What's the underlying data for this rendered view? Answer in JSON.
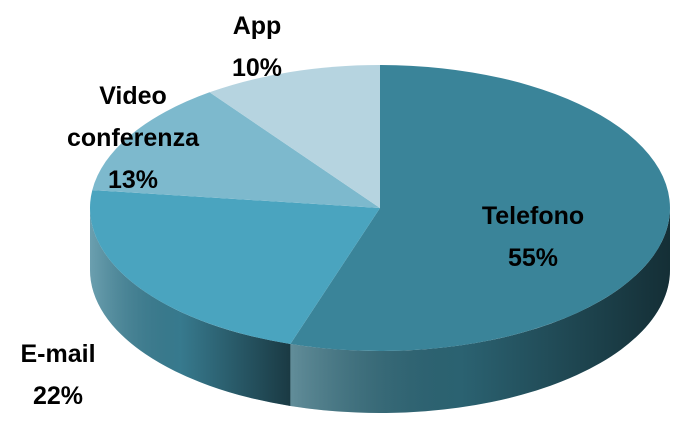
{
  "chart_data": {
    "type": "pie",
    "categories": [
      "Telefono",
      "E-mail",
      "Video conferenza",
      "App"
    ],
    "values": [
      55,
      22,
      13,
      10
    ],
    "value_labels": [
      "55%",
      "22%",
      "13%",
      "10%"
    ],
    "colors": [
      "#3a8499",
      "#4aa4bf",
      "#7db9cd",
      "#b6d4e0"
    ],
    "three_d": true
  }
}
